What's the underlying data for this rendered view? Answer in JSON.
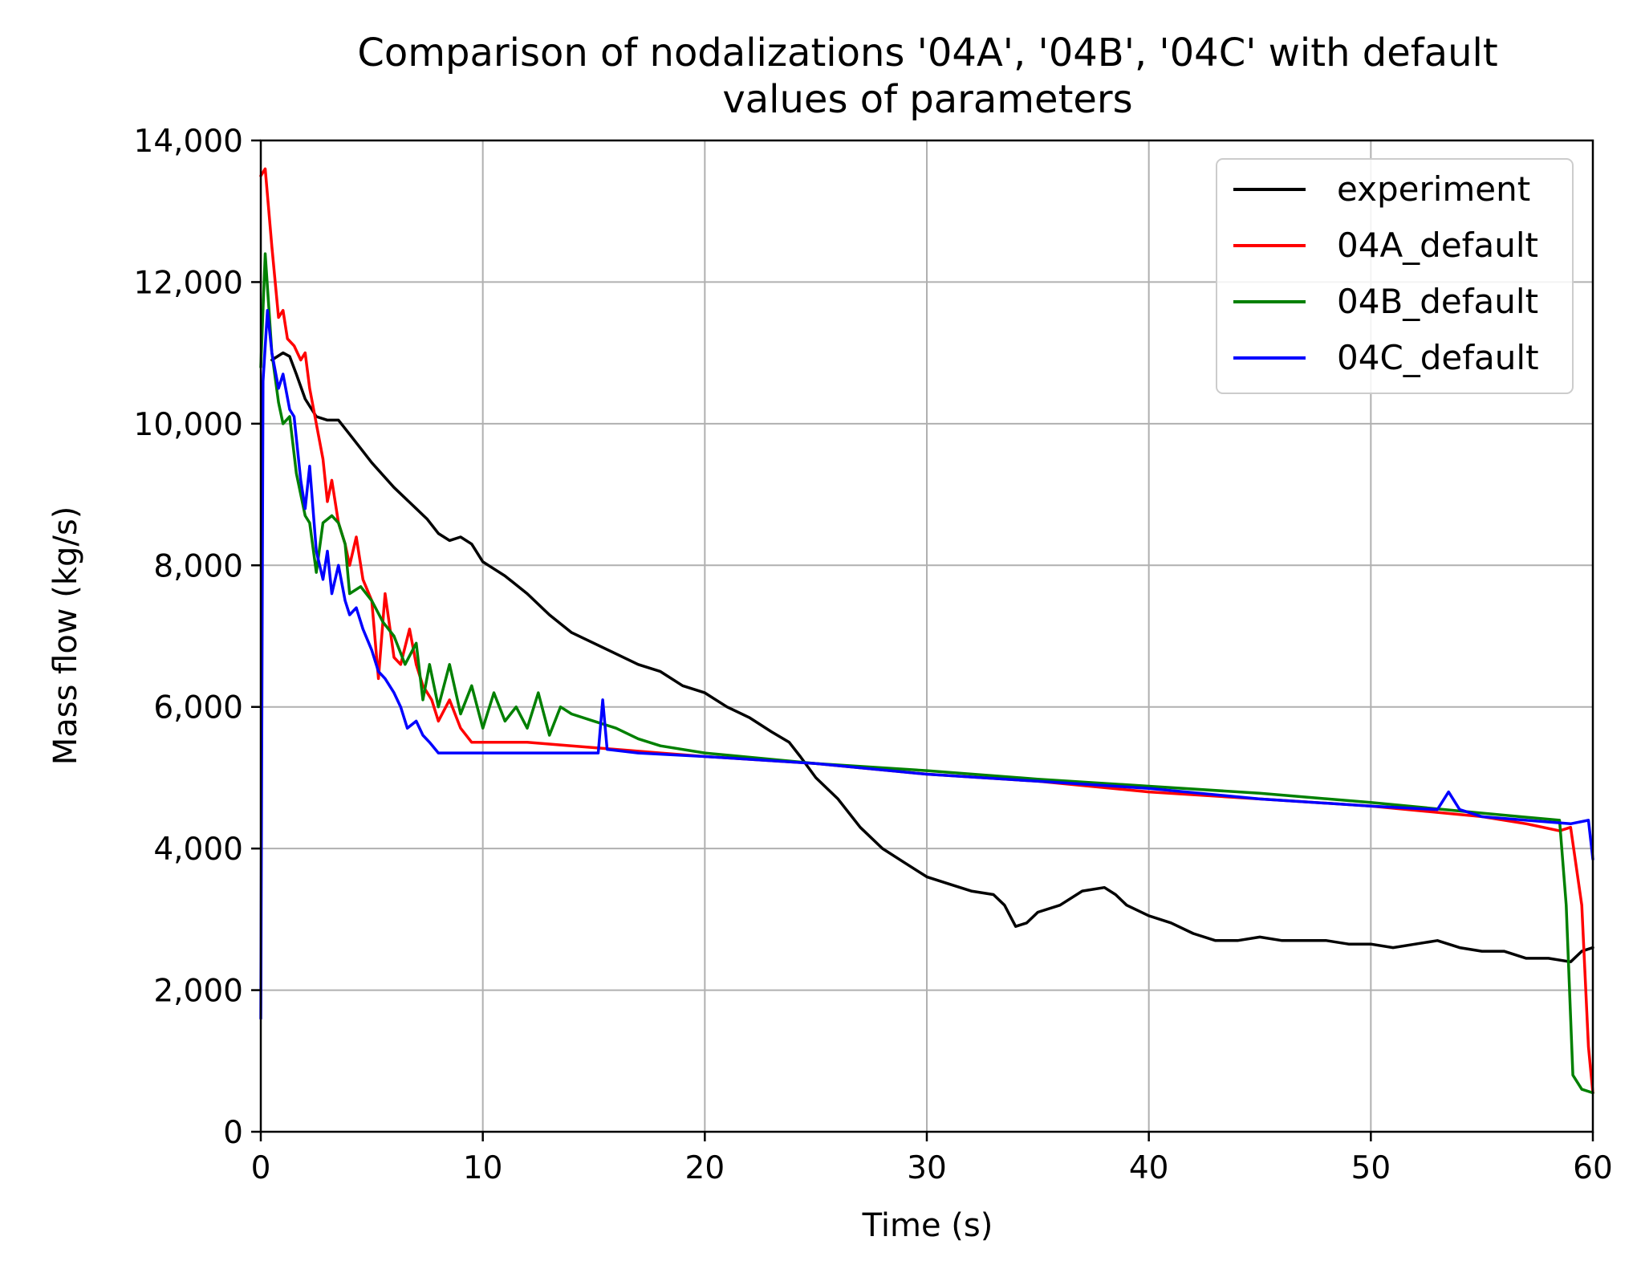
{
  "chart_data": {
    "type": "line",
    "title_line1": "Comparison of nodalizations '04A', '04B', '04C' with default",
    "title_line2": "values of parameters",
    "xlabel": "Time (s)",
    "ylabel": "Mass flow (kg/s)",
    "xlim": [
      0,
      60
    ],
    "ylim": [
      0,
      14000
    ],
    "xticks": [
      0,
      10,
      20,
      30,
      40,
      50,
      60
    ],
    "xtick_labels": [
      "0",
      "10",
      "20",
      "30",
      "40",
      "50",
      "60"
    ],
    "yticks": [
      0,
      2000,
      4000,
      6000,
      8000,
      10000,
      12000,
      14000
    ],
    "ytick_labels": [
      "0",
      "2,000",
      "4,000",
      "6,000",
      "8,000",
      "10,000",
      "12,000",
      "14,000"
    ],
    "grid": true,
    "legend_position": "top-right",
    "series": [
      {
        "name": "experiment",
        "color": "#000000",
        "points": [
          [
            0.5,
            10900
          ],
          [
            1,
            11000
          ],
          [
            1.3,
            10950
          ],
          [
            1.6,
            10700
          ],
          [
            2,
            10350
          ],
          [
            2.5,
            10100
          ],
          [
            3,
            10050
          ],
          [
            3.5,
            10050
          ],
          [
            4,
            9850
          ],
          [
            4.5,
            9650
          ],
          [
            5,
            9450
          ],
          [
            6,
            9100
          ],
          [
            7,
            8800
          ],
          [
            7.5,
            8650
          ],
          [
            8,
            8450
          ],
          [
            8.5,
            8350
          ],
          [
            9,
            8400
          ],
          [
            9.5,
            8300
          ],
          [
            10,
            8050
          ],
          [
            10.5,
            7950
          ],
          [
            11,
            7850
          ],
          [
            12,
            7600
          ],
          [
            13,
            7300
          ],
          [
            14,
            7050
          ],
          [
            15,
            6900
          ],
          [
            16,
            6750
          ],
          [
            17,
            6600
          ],
          [
            18,
            6500
          ],
          [
            19,
            6300
          ],
          [
            20,
            6200
          ],
          [
            21,
            6000
          ],
          [
            22,
            5850
          ],
          [
            23,
            5650
          ],
          [
            23.8,
            5500
          ],
          [
            24.3,
            5300
          ],
          [
            25,
            5000
          ],
          [
            26,
            4700
          ],
          [
            27,
            4300
          ],
          [
            28,
            4000
          ],
          [
            29,
            3800
          ],
          [
            30,
            3600
          ],
          [
            31,
            3500
          ],
          [
            32,
            3400
          ],
          [
            33,
            3350
          ],
          [
            33.5,
            3200
          ],
          [
            34,
            2900
          ],
          [
            34.5,
            2950
          ],
          [
            35,
            3100
          ],
          [
            36,
            3200
          ],
          [
            37,
            3400
          ],
          [
            38,
            3450
          ],
          [
            38.5,
            3350
          ],
          [
            39,
            3200
          ],
          [
            40,
            3050
          ],
          [
            41,
            2950
          ],
          [
            42,
            2800
          ],
          [
            43,
            2700
          ],
          [
            44,
            2700
          ],
          [
            45,
            2750
          ],
          [
            46,
            2700
          ],
          [
            47,
            2700
          ],
          [
            48,
            2700
          ],
          [
            49,
            2650
          ],
          [
            50,
            2650
          ],
          [
            51,
            2600
          ],
          [
            52,
            2650
          ],
          [
            53,
            2700
          ],
          [
            54,
            2600
          ],
          [
            55,
            2550
          ],
          [
            56,
            2550
          ],
          [
            57,
            2450
          ],
          [
            58,
            2450
          ],
          [
            59,
            2400
          ],
          [
            59.5,
            2550
          ],
          [
            60,
            2600
          ]
        ]
      },
      {
        "name": "04A_default",
        "color": "#ff0000",
        "points": [
          [
            0,
            13500
          ],
          [
            0.2,
            13600
          ],
          [
            0.5,
            12500
          ],
          [
            0.8,
            11500
          ],
          [
            1,
            11600
          ],
          [
            1.2,
            11200
          ],
          [
            1.5,
            11100
          ],
          [
            1.8,
            10900
          ],
          [
            2,
            11000
          ],
          [
            2.2,
            10500
          ],
          [
            2.5,
            10000
          ],
          [
            2.8,
            9500
          ],
          [
            3,
            8900
          ],
          [
            3.2,
            9200
          ],
          [
            3.5,
            8600
          ],
          [
            3.8,
            8300
          ],
          [
            4,
            8000
          ],
          [
            4.3,
            8400
          ],
          [
            4.6,
            7800
          ],
          [
            5,
            7500
          ],
          [
            5.3,
            6400
          ],
          [
            5.6,
            7600
          ],
          [
            6,
            6700
          ],
          [
            6.3,
            6600
          ],
          [
            6.7,
            7100
          ],
          [
            7,
            6600
          ],
          [
            7.3,
            6300
          ],
          [
            7.7,
            6100
          ],
          [
            8,
            5800
          ],
          [
            8.5,
            6100
          ],
          [
            9,
            5700
          ],
          [
            9.5,
            5500
          ],
          [
            10,
            5500
          ],
          [
            12,
            5500
          ],
          [
            14,
            5450
          ],
          [
            16,
            5400
          ],
          [
            18,
            5350
          ],
          [
            20,
            5300
          ],
          [
            25,
            5200
          ],
          [
            30,
            5050
          ],
          [
            35,
            4950
          ],
          [
            40,
            4800
          ],
          [
            45,
            4700
          ],
          [
            50,
            4600
          ],
          [
            55,
            4450
          ],
          [
            57,
            4350
          ],
          [
            58.5,
            4250
          ],
          [
            59,
            4300
          ],
          [
            59.5,
            3200
          ],
          [
            59.8,
            1200
          ],
          [
            60,
            550
          ]
        ]
      },
      {
        "name": "04B_default",
        "color": "#008000",
        "points": [
          [
            0,
            10800
          ],
          [
            0.2,
            12400
          ],
          [
            0.5,
            11000
          ],
          [
            0.8,
            10300
          ],
          [
            1,
            10000
          ],
          [
            1.3,
            10100
          ],
          [
            1.6,
            9300
          ],
          [
            2,
            8700
          ],
          [
            2.2,
            8600
          ],
          [
            2.5,
            7900
          ],
          [
            2.8,
            8600
          ],
          [
            3.2,
            8700
          ],
          [
            3.5,
            8600
          ],
          [
            3.8,
            8300
          ],
          [
            4,
            7600
          ],
          [
            4.5,
            7700
          ],
          [
            5,
            7500
          ],
          [
            5.5,
            7200
          ],
          [
            6,
            7000
          ],
          [
            6.5,
            6600
          ],
          [
            7,
            6900
          ],
          [
            7.3,
            6100
          ],
          [
            7.6,
            6600
          ],
          [
            8,
            6000
          ],
          [
            8.5,
            6600
          ],
          [
            9,
            5900
          ],
          [
            9.5,
            6300
          ],
          [
            10,
            5700
          ],
          [
            10.5,
            6200
          ],
          [
            11,
            5800
          ],
          [
            11.5,
            6000
          ],
          [
            12,
            5700
          ],
          [
            12.5,
            6200
          ],
          [
            13,
            5600
          ],
          [
            13.5,
            6000
          ],
          [
            14,
            5900
          ],
          [
            15,
            5800
          ],
          [
            16,
            5700
          ],
          [
            17,
            5550
          ],
          [
            18,
            5450
          ],
          [
            20,
            5350
          ],
          [
            25,
            5200
          ],
          [
            30,
            5100
          ],
          [
            35,
            4980
          ],
          [
            40,
            4880
          ],
          [
            45,
            4780
          ],
          [
            50,
            4650
          ],
          [
            55,
            4500
          ],
          [
            58.5,
            4400
          ],
          [
            58.8,
            3200
          ],
          [
            59.1,
            800
          ],
          [
            59.5,
            600
          ],
          [
            60,
            550
          ]
        ]
      },
      {
        "name": "04C_default",
        "color": "#0000ff",
        "points": [
          [
            0,
            1600
          ],
          [
            0.1,
            10600
          ],
          [
            0.3,
            11600
          ],
          [
            0.5,
            11000
          ],
          [
            0.8,
            10500
          ],
          [
            1,
            10700
          ],
          [
            1.3,
            10200
          ],
          [
            1.5,
            10100
          ],
          [
            1.8,
            9200
          ],
          [
            2,
            8800
          ],
          [
            2.2,
            9400
          ],
          [
            2.5,
            8200
          ],
          [
            2.8,
            7800
          ],
          [
            3,
            8200
          ],
          [
            3.2,
            7600
          ],
          [
            3.5,
            8000
          ],
          [
            3.8,
            7500
          ],
          [
            4,
            7300
          ],
          [
            4.3,
            7400
          ],
          [
            4.6,
            7100
          ],
          [
            5,
            6800
          ],
          [
            5.3,
            6500
          ],
          [
            5.6,
            6400
          ],
          [
            6,
            6200
          ],
          [
            6.3,
            6000
          ],
          [
            6.6,
            5700
          ],
          [
            7,
            5800
          ],
          [
            7.3,
            5600
          ],
          [
            7.6,
            5500
          ],
          [
            8,
            5350
          ],
          [
            9,
            5350
          ],
          [
            10,
            5350
          ],
          [
            12,
            5350
          ],
          [
            14,
            5350
          ],
          [
            15.2,
            5350
          ],
          [
            15.4,
            6100
          ],
          [
            15.6,
            5400
          ],
          [
            17,
            5350
          ],
          [
            20,
            5300
          ],
          [
            25,
            5200
          ],
          [
            30,
            5050
          ],
          [
            35,
            4950
          ],
          [
            40,
            4850
          ],
          [
            45,
            4700
          ],
          [
            50,
            4600
          ],
          [
            53,
            4550
          ],
          [
            53.5,
            4800
          ],
          [
            54,
            4550
          ],
          [
            55,
            4450
          ],
          [
            57,
            4400
          ],
          [
            59,
            4350
          ],
          [
            59.8,
            4400
          ],
          [
            60,
            3850
          ]
        ]
      }
    ]
  }
}
